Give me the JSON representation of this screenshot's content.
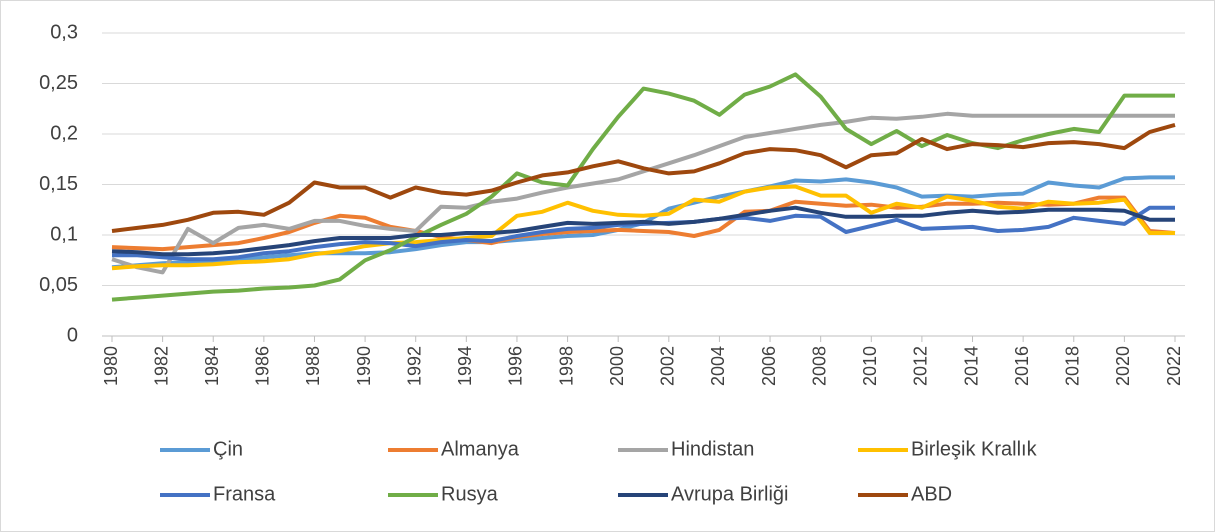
{
  "chart_data": {
    "type": "line",
    "x": [
      1980,
      1981,
      1982,
      1983,
      1984,
      1985,
      1986,
      1987,
      1988,
      1989,
      1990,
      1991,
      1992,
      1993,
      1994,
      1995,
      1996,
      1997,
      1998,
      1999,
      2000,
      2001,
      2002,
      2003,
      2004,
      2005,
      2006,
      2007,
      2008,
      2009,
      2010,
      2011,
      2012,
      2013,
      2014,
      2015,
      2016,
      2017,
      2018,
      2019,
      2020,
      2021,
      2022
    ],
    "xlim": [
      1980,
      2022
    ],
    "xticks": [
      1980,
      1982,
      1984,
      1986,
      1988,
      1990,
      1992,
      1994,
      1996,
      1998,
      2000,
      2002,
      2004,
      2006,
      2008,
      2010,
      2012,
      2014,
      2016,
      2018,
      2020,
      2022
    ],
    "ylim": [
      0,
      0.3
    ],
    "yticks": [
      0,
      {
        "value": 0.05,
        "label": "0,05"
      },
      {
        "value": 0.1,
        "label": "0,1"
      },
      {
        "value": 0.15,
        "label": "0,15"
      },
      {
        "value": 0.2,
        "label": "0,2"
      },
      {
        "value": 0.25,
        "label": "0,25"
      },
      {
        "value": 0.3,
        "label": "0,3"
      }
    ],
    "grid": true,
    "legend": "bottom",
    "series": [
      {
        "name": "Çin",
        "color": "#5b9bd5",
        "values": [
          0.068,
          0.07,
          0.072,
          0.073,
          0.074,
          0.076,
          0.078,
          0.08,
          0.082,
          0.082,
          0.082,
          0.083,
          0.086,
          0.09,
          0.093,
          0.093,
          0.095,
          0.097,
          0.099,
          0.1,
          0.105,
          0.112,
          0.126,
          0.132,
          0.138,
          0.143,
          0.148,
          0.154,
          0.153,
          0.155,
          0.152,
          0.147,
          0.138,
          0.139,
          0.138,
          0.14,
          0.141,
          0.152,
          0.149,
          0.147,
          0.156,
          0.157,
          0.157
        ]
      },
      {
        "name": "Almanya",
        "color": "#ed7d31",
        "values": [
          0.088,
          0.087,
          0.086,
          0.088,
          0.09,
          0.092,
          0.097,
          0.103,
          0.112,
          0.119,
          0.117,
          0.108,
          0.104,
          0.098,
          0.095,
          0.092,
          0.098,
          0.101,
          0.103,
          0.104,
          0.105,
          0.104,
          0.103,
          0.099,
          0.105,
          0.123,
          0.124,
          0.133,
          0.131,
          0.129,
          0.13,
          0.127,
          0.128,
          0.131,
          0.131,
          0.132,
          0.131,
          0.13,
          0.131,
          0.137,
          0.137,
          0.104,
          0.102
        ]
      },
      {
        "name": "Hindistan",
        "color": "#a5a5a5",
        "values": [
          0.076,
          0.068,
          0.063,
          0.106,
          0.092,
          0.107,
          0.11,
          0.106,
          0.114,
          0.114,
          0.109,
          0.106,
          0.104,
          0.128,
          0.127,
          0.133,
          0.136,
          0.142,
          0.147,
          0.151,
          0.155,
          0.163,
          0.171,
          0.179,
          0.188,
          0.197,
          0.201,
          0.205,
          0.209,
          0.212,
          0.216,
          0.215,
          0.217,
          0.22,
          0.218,
          0.218,
          0.218,
          0.218,
          0.218,
          0.218,
          0.218,
          0.218,
          0.218
        ]
      },
      {
        "name": "Birleşik Krallık",
        "color": "#ffc000",
        "values": [
          0.067,
          0.069,
          0.07,
          0.07,
          0.071,
          0.073,
          0.074,
          0.076,
          0.081,
          0.084,
          0.089,
          0.092,
          0.093,
          0.095,
          0.097,
          0.099,
          0.119,
          0.123,
          0.132,
          0.124,
          0.12,
          0.119,
          0.121,
          0.135,
          0.133,
          0.143,
          0.147,
          0.148,
          0.139,
          0.139,
          0.122,
          0.131,
          0.127,
          0.138,
          0.134,
          0.128,
          0.126,
          0.133,
          0.131,
          0.132,
          0.135,
          0.102,
          0.102
        ]
      },
      {
        "name": "Fransa",
        "color": "#4472c4",
        "values": [
          0.08,
          0.08,
          0.078,
          0.076,
          0.076,
          0.078,
          0.082,
          0.084,
          0.088,
          0.091,
          0.093,
          0.092,
          0.089,
          0.093,
          0.095,
          0.094,
          0.099,
          0.103,
          0.106,
          0.107,
          0.11,
          0.111,
          0.112,
          0.113,
          0.116,
          0.117,
          0.114,
          0.119,
          0.118,
          0.103,
          0.109,
          0.115,
          0.106,
          0.107,
          0.108,
          0.104,
          0.105,
          0.108,
          0.117,
          0.114,
          0.111,
          0.127,
          0.127
        ]
      },
      {
        "name": "Rusya",
        "color": "#70ad47",
        "values": [
          0.036,
          0.038,
          0.04,
          0.042,
          0.044,
          0.045,
          0.047,
          0.048,
          0.05,
          0.056,
          0.075,
          0.085,
          0.098,
          0.11,
          0.121,
          0.138,
          0.161,
          0.152,
          0.149,
          0.185,
          0.217,
          0.245,
          0.24,
          0.233,
          0.219,
          0.239,
          0.247,
          0.259,
          0.237,
          0.205,
          0.19,
          0.203,
          0.188,
          0.199,
          0.191,
          0.186,
          0.194,
          0.2,
          0.205,
          0.202,
          0.238,
          0.238,
          0.238
        ]
      },
      {
        "name": "Avrupa Birliği",
        "color": "#264478",
        "values": [
          0.084,
          0.083,
          0.081,
          0.081,
          0.082,
          0.084,
          0.087,
          0.09,
          0.094,
          0.097,
          0.097,
          0.097,
          0.1,
          0.1,
          0.102,
          0.102,
          0.104,
          0.108,
          0.112,
          0.111,
          0.112,
          0.113,
          0.111,
          0.113,
          0.116,
          0.12,
          0.124,
          0.127,
          0.122,
          0.118,
          0.118,
          0.119,
          0.119,
          0.122,
          0.124,
          0.122,
          0.123,
          0.125,
          0.125,
          0.125,
          0.124,
          0.115,
          0.115
        ]
      },
      {
        "name": "ABD",
        "color": "#9e480e",
        "values": [
          0.104,
          0.107,
          0.11,
          0.115,
          0.122,
          0.123,
          0.12,
          0.132,
          0.152,
          0.147,
          0.147,
          0.137,
          0.147,
          0.142,
          0.14,
          0.144,
          0.152,
          0.159,
          0.162,
          0.168,
          0.173,
          0.166,
          0.161,
          0.163,
          0.171,
          0.181,
          0.185,
          0.184,
          0.179,
          0.167,
          0.179,
          0.181,
          0.195,
          0.185,
          0.19,
          0.189,
          0.187,
          0.191,
          0.192,
          0.19,
          0.186,
          0.202,
          0.209
        ]
      }
    ]
  }
}
